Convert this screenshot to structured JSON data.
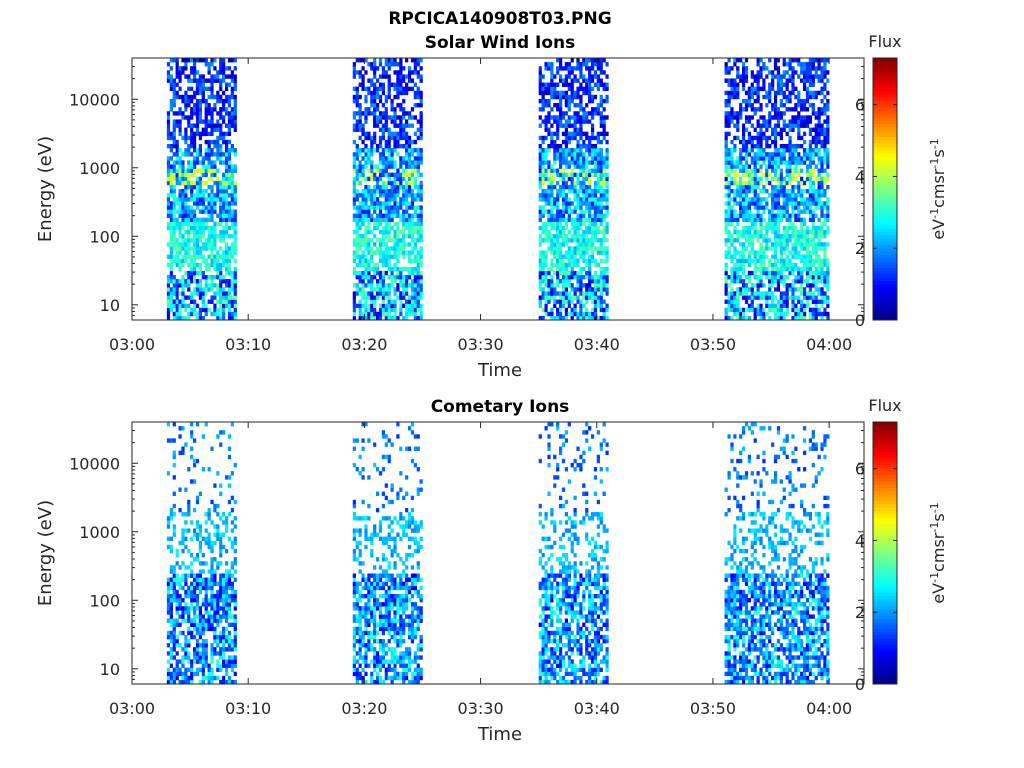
{
  "figure": {
    "title": "RPCICA140908T03.PNG"
  },
  "chart_data": [
    {
      "type": "heatmap",
      "title": "Solar Wind Ions",
      "xlabel": "Time",
      "ylabel": "Energy (eV)",
      "x_ticks": [
        "03:00",
        "03:10",
        "03:20",
        "03:30",
        "03:40",
        "03:50",
        "04:00"
      ],
      "y_ticks": [
        "10",
        "100",
        "1000",
        "10000"
      ],
      "y_scale": "log",
      "y_range": [
        6,
        40000
      ],
      "x_range": [
        "03:00",
        "04:03"
      ],
      "colorbar": {
        "title": "Flux",
        "label": "eV-1cm-2sr-1s-1",
        "ticks": [
          "0",
          "2",
          "4",
          "6"
        ],
        "range": [
          0,
          7.3
        ],
        "colormap": "jet"
      },
      "data_blocks": [
        {
          "start": "03:03",
          "end": "03:09"
        },
        {
          "start": "03:19",
          "end": "03:25"
        },
        {
          "start": "03:35",
          "end": "03:41"
        },
        {
          "start": "03:51",
          "end": "04:00"
        }
      ],
      "peak_energy_eV": 700,
      "peak_flux": 4.2
    },
    {
      "type": "heatmap",
      "title": "Cometary Ions",
      "xlabel": "Time",
      "ylabel": "Energy (eV)",
      "x_ticks": [
        "03:00",
        "03:10",
        "03:20",
        "03:30",
        "03:40",
        "03:50",
        "04:00"
      ],
      "y_ticks": [
        "10",
        "100",
        "1000",
        "10000"
      ],
      "y_scale": "log",
      "y_range": [
        6,
        40000
      ],
      "x_range": [
        "03:00",
        "04:03"
      ],
      "colorbar": {
        "title": "Flux",
        "label": "eV-1cm-2sr-1s-1",
        "ticks": [
          "0",
          "2",
          "4",
          "6"
        ],
        "range": [
          0,
          7.3
        ],
        "colormap": "jet"
      },
      "data_blocks": [
        {
          "start": "03:03",
          "end": "03:09"
        },
        {
          "start": "03:19",
          "end": "03:25"
        },
        {
          "start": "03:35",
          "end": "03:41"
        },
        {
          "start": "03:51",
          "end": "04:00"
        }
      ],
      "peak_energy_eV": null,
      "peak_flux": 3.0
    }
  ]
}
